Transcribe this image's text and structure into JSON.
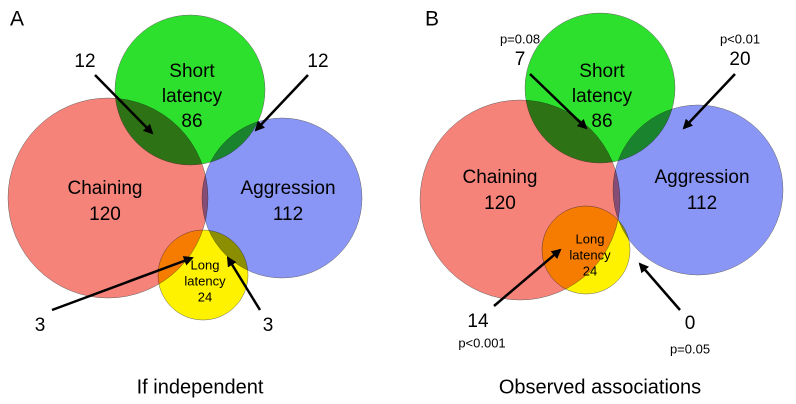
{
  "panels": [
    {
      "label": "A",
      "caption": "If independent",
      "sets": [
        {
          "name": [
            "Short",
            "latency"
          ],
          "count": 86
        },
        {
          "name": [
            "Chaining"
          ],
          "count": 120
        },
        {
          "name": [
            "Aggression"
          ],
          "count": 112
        },
        {
          "name": [
            "Long",
            "latency"
          ],
          "count": 24
        }
      ],
      "overlaps": [
        {
          "count": 12
        },
        {
          "count": 12
        },
        {
          "count": 3
        },
        {
          "count": 3
        }
      ]
    },
    {
      "label": "B",
      "caption": "Observed associations",
      "sets": [
        {
          "name": [
            "Short",
            "latency"
          ],
          "count": 86
        },
        {
          "name": [
            "Chaining"
          ],
          "count": 120
        },
        {
          "name": [
            "Aggression"
          ],
          "count": 112
        },
        {
          "name": [
            "Long",
            "latency"
          ],
          "count": 24
        }
      ],
      "overlaps": [
        {
          "count": 7,
          "p": "p=0.08"
        },
        {
          "count": 20,
          "p": "p<0.01"
        },
        {
          "count": 14,
          "p": "p<0.001"
        },
        {
          "count": 0,
          "p": "p=0.05"
        }
      ]
    }
  ]
}
